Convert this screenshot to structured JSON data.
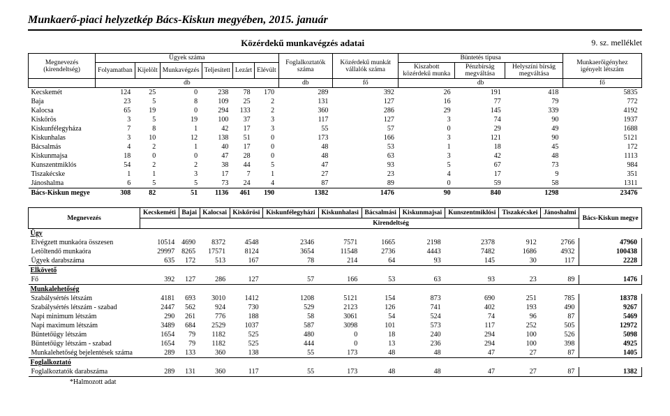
{
  "page_title": "Munkaerő-piaci helyzetkép Bács-Kiskun megyében, 2015. január",
  "attachment": "9. sz. melléklet",
  "table1": {
    "title": "Közérdekű munkavégzés adatai",
    "headers": {
      "megnevezes": "Megnevezés (kirendeltség)",
      "ugyek": "Ügyek száma",
      "ugyek_sub": [
        "Folyamatban",
        "Kijelölt",
        "Munkavégzés",
        "Teljesített",
        "Lezárt",
        "Elévült"
      ],
      "foglalk": "Foglalkoztatók száma",
      "kozerdeku": "Közérdekű munkát vállalók száma",
      "buntetes": "Büntetés típusa",
      "buntetes_sub": [
        "Kiszabott közérdekű munka",
        "Pénzbírság megváltása",
        "Helyszíni bírság megváltása"
      ],
      "munkaero": "Munkaerőigényhez igényelt létszám"
    },
    "units": [
      "",
      "db",
      "db",
      "fő",
      "db",
      "fő"
    ],
    "rows": [
      [
        "Kecskemét",
        124,
        25,
        0,
        238,
        78,
        170,
        289,
        392,
        26,
        191,
        418,
        5835
      ],
      [
        "Baja",
        23,
        5,
        8,
        109,
        25,
        2,
        131,
        127,
        16,
        77,
        79,
        772
      ],
      [
        "Kalocsa",
        65,
        19,
        0,
        294,
        133,
        2,
        360,
        286,
        29,
        145,
        339,
        4192
      ],
      [
        "Kiskőrös",
        3,
        5,
        19,
        100,
        37,
        3,
        117,
        127,
        3,
        74,
        90,
        1937
      ],
      [
        "Kiskunfélegyháza",
        7,
        8,
        1,
        42,
        17,
        3,
        55,
        57,
        0,
        29,
        49,
        1688
      ],
      [
        "Kiskunhalas",
        3,
        10,
        12,
        138,
        51,
        0,
        173,
        166,
        3,
        121,
        90,
        5121
      ],
      [
        "Bácsalmás",
        4,
        2,
        1,
        40,
        17,
        0,
        48,
        53,
        1,
        18,
        45,
        172
      ],
      [
        "Kiskunmajsa",
        18,
        0,
        0,
        47,
        28,
        0,
        48,
        63,
        3,
        42,
        48,
        1113
      ],
      [
        "Kunszentmiklós",
        54,
        2,
        2,
        38,
        44,
        5,
        47,
        93,
        5,
        67,
        73,
        984
      ],
      [
        "Tiszakécske",
        1,
        1,
        3,
        17,
        7,
        1,
        27,
        23,
        4,
        17,
        9,
        351
      ],
      [
        "Jánoshalma",
        6,
        5,
        5,
        73,
        24,
        4,
        87,
        89,
        0,
        59,
        58,
        1311
      ]
    ],
    "total": [
      "Bács-Kiskun megye",
      308,
      82,
      51,
      1136,
      461,
      190,
      1382,
      1476,
      90,
      840,
      1298,
      23476
    ]
  },
  "table2": {
    "col_headers": [
      "Megnevezés",
      "Kecskeméti",
      "Bajai",
      "Kalocsai",
      "Kiskőrösi",
      "Kiskunfélegyházi",
      "Kiskunhalasi",
      "Bácsalmási",
      "Kiskunmajsai",
      "Kunszentmiklósi",
      "Tiszakécskei",
      "Jánoshalmi",
      "Bács-Kiskun megye"
    ],
    "sub_header": "Kirendeltség",
    "sections": [
      {
        "title": "Ügy",
        "rows": [
          [
            "Elvégzett munkaóra összesen",
            10514,
            4690,
            8372,
            4548,
            2346,
            7571,
            1665,
            2198,
            2378,
            912,
            2766,
            47960
          ],
          [
            "Letöltendő munkaóra",
            29997,
            8265,
            17571,
            8124,
            3654,
            11548,
            2736,
            4443,
            7482,
            1686,
            4932,
            100438
          ],
          [
            "Ügyek darabszáma",
            635,
            172,
            513,
            167,
            78,
            214,
            64,
            93,
            145,
            30,
            117,
            2228
          ]
        ]
      },
      {
        "title": "Elkövető",
        "rows": [
          [
            "Fő",
            392,
            127,
            286,
            127,
            57,
            166,
            53,
            63,
            93,
            23,
            89,
            1476
          ]
        ]
      },
      {
        "title": "Munkalehetőség",
        "rows": [
          [
            "Szabálysértés létszám",
            4181,
            693,
            3010,
            1412,
            1208,
            5121,
            154,
            873,
            690,
            251,
            785,
            18378
          ],
          [
            "Szabálysértés létszám - szabad",
            2447,
            562,
            924,
            730,
            529,
            2123,
            126,
            741,
            402,
            193,
            490,
            9267
          ],
          [
            "Napi minimum létszám",
            290,
            261,
            776,
            188,
            58,
            3061,
            54,
            524,
            74,
            96,
            87,
            5469
          ],
          [
            "Napi maximum létszám",
            3489,
            684,
            2529,
            1037,
            587,
            3098,
            101,
            573,
            117,
            252,
            505,
            12972
          ],
          [
            "Büntetőügy létszám",
            1654,
            79,
            1182,
            525,
            480,
            0,
            18,
            240,
            294,
            100,
            526,
            5098
          ],
          [
            "Büntetőügy létszám - szabad",
            1654,
            79,
            1182,
            525,
            444,
            0,
            13,
            236,
            294,
            100,
            398,
            4925
          ],
          [
            "Munkalehetőség bejelentések száma",
            289,
            133,
            360,
            138,
            55,
            173,
            48,
            48,
            47,
            27,
            87,
            1405
          ]
        ]
      },
      {
        "title": "Foglalkoztató",
        "rows": [
          [
            "Foglalkoztatók darabszáma",
            289,
            131,
            360,
            117,
            55,
            173,
            48,
            48,
            47,
            27,
            87,
            1382
          ]
        ]
      }
    ]
  },
  "footnote": "*Halmozott adat"
}
